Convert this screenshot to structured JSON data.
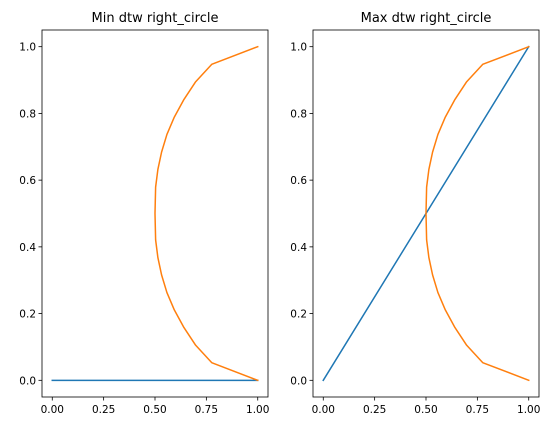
{
  "chart_data": [
    {
      "type": "line",
      "title": "Min dtw right_circle",
      "xlabel": "",
      "ylabel": "",
      "xlim": [
        -0.05,
        1.05
      ],
      "ylim": [
        -0.05,
        1.05
      ],
      "xticks": [
        "0.00",
        "0.25",
        "0.50",
        "0.75",
        "1.00"
      ],
      "yticks": [
        "0.0",
        "0.2",
        "0.4",
        "0.6",
        "0.8",
        "1.0"
      ],
      "grid": false,
      "colors": [
        "#1f77b4",
        "#ff7f0e"
      ],
      "series": [
        {
          "x": [
            0,
            1
          ],
          "y": [
            0,
            0
          ]
        },
        {
          "x": [
            1.0,
            0.776,
            0.698,
            0.641,
            0.594,
            0.558,
            0.532,
            0.514,
            0.503,
            0.5,
            0.503,
            0.514,
            0.532,
            0.558,
            0.594,
            0.641,
            0.698,
            0.776,
            1.0
          ],
          "y": [
            0.0,
            0.053,
            0.105,
            0.158,
            0.211,
            0.263,
            0.316,
            0.368,
            0.421,
            0.5,
            0.579,
            0.632,
            0.684,
            0.737,
            0.789,
            0.842,
            0.895,
            0.947,
            1.0
          ]
        }
      ]
    },
    {
      "type": "line",
      "title": "Max dtw right_circle",
      "xlabel": "",
      "ylabel": "",
      "xlim": [
        -0.05,
        1.05
      ],
      "ylim": [
        -0.05,
        1.05
      ],
      "xticks": [
        "0.00",
        "0.25",
        "0.50",
        "0.75",
        "1.00"
      ],
      "yticks": [
        "0.0",
        "0.2",
        "0.4",
        "0.6",
        "0.8",
        "1.0"
      ],
      "grid": false,
      "colors": [
        "#1f77b4",
        "#ff7f0e"
      ],
      "series": [
        {
          "x": [
            0,
            1
          ],
          "y": [
            0,
            1
          ]
        },
        {
          "x": [
            1.0,
            0.776,
            0.698,
            0.641,
            0.594,
            0.558,
            0.532,
            0.514,
            0.503,
            0.5,
            0.503,
            0.514,
            0.532,
            0.558,
            0.594,
            0.641,
            0.698,
            0.776,
            1.0
          ],
          "y": [
            0.0,
            0.053,
            0.105,
            0.158,
            0.211,
            0.263,
            0.316,
            0.368,
            0.421,
            0.5,
            0.579,
            0.632,
            0.684,
            0.737,
            0.789,
            0.842,
            0.895,
            0.947,
            1.0
          ]
        }
      ]
    }
  ]
}
